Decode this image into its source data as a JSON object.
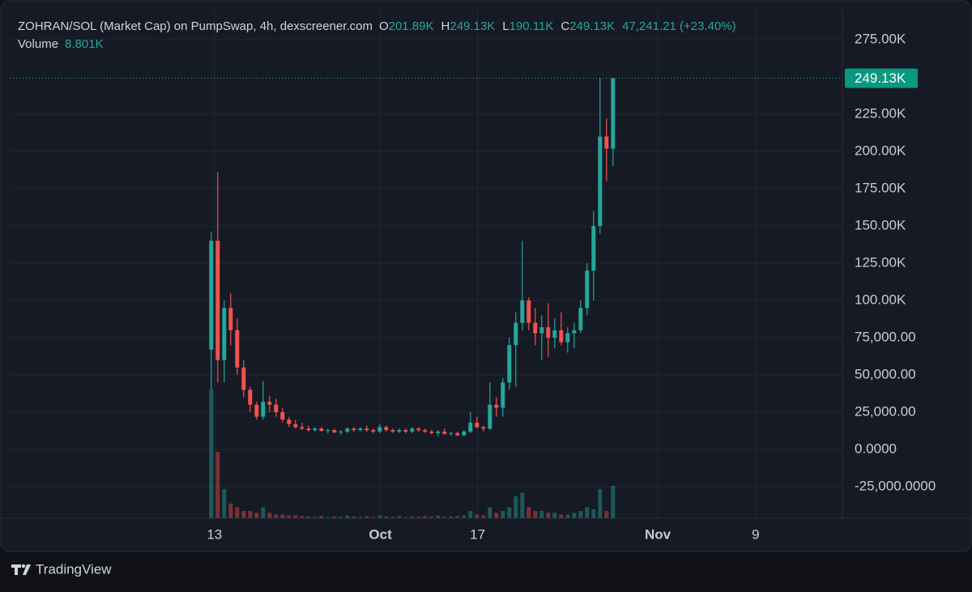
{
  "chart_data": {
    "type": "candlestick",
    "title": "ZOHRAN/SOL (Market Cap) on PumpSwap, 4h, dexscreener.com",
    "ohlc_legend": [
      {
        "key": "O",
        "value": "201.89K"
      },
      {
        "key": "H",
        "value": "249.13K"
      },
      {
        "key": "L",
        "value": "190.11K"
      },
      {
        "key": "C",
        "value": "249.13K"
      }
    ],
    "change_label": "47,241.21 (+23.40%)",
    "up_color": "#26a69a",
    "down_color": "#ef5350",
    "series": [
      {
        "name": "ZOHRAN/SOL",
        "open": [
          67000,
          140000,
          60000,
          95000,
          80000,
          55000,
          40000,
          30000,
          22000,
          32000,
          30000,
          25000,
          20000,
          17000,
          15000,
          14000,
          13000,
          14000,
          12500,
          13000,
          11500,
          12000,
          14000,
          13000,
          14000,
          13000,
          12000,
          15000,
          13000,
          12000,
          13000,
          12000,
          14000,
          13000,
          12000,
          11000,
          12000,
          10500,
          11000,
          9500,
          12000,
          18000,
          15000,
          14000,
          30000,
          28000,
          45000,
          70000,
          85000,
          100000,
          85000,
          78000,
          82000,
          75000,
          80000,
          72000,
          78000,
          80000,
          95000,
          120000,
          150000,
          210000,
          201890
        ],
        "high": [
          146000,
          186000,
          100000,
          105000,
          88000,
          60000,
          42000,
          32000,
          46000,
          36000,
          34000,
          28000,
          22000,
          20000,
          18000,
          16000,
          15000,
          15000,
          14000,
          14000,
          13000,
          15000,
          15000,
          15000,
          16000,
          14000,
          17000,
          16000,
          14000,
          14000,
          14000,
          15000,
          15000,
          14000,
          13000,
          13000,
          14000,
          12000,
          12000,
          13000,
          25000,
          22000,
          16000,
          45000,
          35000,
          48000,
          75000,
          92000,
          140000,
          102000,
          95000,
          90000,
          98000,
          88000,
          92000,
          82000,
          85000,
          100000,
          125000,
          160000,
          249000,
          222000,
          249130
        ],
        "low": [
          40000,
          45000,
          45000,
          70000,
          50000,
          35000,
          25000,
          20000,
          20000,
          25000,
          22000,
          18000,
          15000,
          14000,
          13000,
          12000,
          12000,
          12000,
          11000,
          11000,
          10000,
          11000,
          12000,
          12000,
          12000,
          11000,
          11000,
          12000,
          11000,
          11000,
          11000,
          11000,
          12000,
          11000,
          10000,
          9000,
          10000,
          9000,
          9000,
          9000,
          11000,
          14000,
          12000,
          13000,
          22000,
          22000,
          40000,
          42000,
          80000,
          80000,
          70000,
          60000,
          62000,
          68000,
          70000,
          65000,
          68000,
          78000,
          90000,
          100000,
          145000,
          180000,
          190110
        ],
        "close": [
          140000,
          60000,
          95000,
          80000,
          55000,
          40000,
          30000,
          22000,
          32000,
          30000,
          25000,
          20000,
          17000,
          15000,
          14000,
          13000,
          14000,
          12500,
          13000,
          11500,
          12000,
          14000,
          13000,
          14000,
          13000,
          12000,
          15000,
          13000,
          12000,
          13000,
          12000,
          14000,
          13000,
          12000,
          11000,
          12000,
          10500,
          11000,
          9500,
          12000,
          18000,
          15000,
          14000,
          30000,
          28000,
          45000,
          70000,
          85000,
          100000,
          85000,
          78000,
          82000,
          75000,
          80000,
          72000,
          78000,
          80000,
          95000,
          120000,
          150000,
          210000,
          201890,
          249130
        ]
      }
    ],
    "volume": {
      "name": "Volume",
      "value_label": "8.801K",
      "ylim": [
        0,
        137
      ],
      "values": [
        35,
        18,
        8,
        4,
        3,
        2,
        2,
        1.5,
        3,
        1.5,
        1,
        1,
        0.8,
        0.8,
        0.6,
        0.5,
        0.4,
        0.6,
        0.3,
        0.5,
        0.4,
        0.7,
        0.5,
        0.4,
        0.6,
        0.3,
        0.8,
        0.5,
        0.4,
        0.6,
        0.3,
        0.5,
        0.4,
        0.6,
        0.5,
        0.7,
        0.4,
        0.5,
        0.6,
        0.8,
        2,
        1,
        0.8,
        3,
        1.5,
        2,
        3,
        6,
        7,
        3,
        2,
        2,
        1.5,
        1.5,
        1,
        1,
        1.5,
        2,
        3,
        2.5,
        8,
        2,
        8.801
      ]
    },
    "last_price": {
      "value": 249130,
      "label": "249.13K"
    },
    "ylim": [
      -46196,
      291848
    ],
    "yticks": [
      {
        "value": 275000,
        "label": "275.00K"
      },
      {
        "value": 225000,
        "label": "225.00K"
      },
      {
        "value": 200000,
        "label": "200.00K"
      },
      {
        "value": 175000,
        "label": "175.00K"
      },
      {
        "value": 150000,
        "label": "150.00K"
      },
      {
        "value": 125000,
        "label": "125.00K"
      },
      {
        "value": 100000,
        "label": "100.00K"
      },
      {
        "value": 75000,
        "label": "75,000.00"
      },
      {
        "value": 50000,
        "label": "50,000.00"
      },
      {
        "value": 25000,
        "label": "25,000.00"
      },
      {
        "value": 0,
        "label": "0.0000"
      },
      {
        "value": -25000,
        "label": "-25,000.0000"
      }
    ],
    "xlim": [
      -31.1,
      97.4
    ],
    "xticks": [
      {
        "value": 0.5,
        "label": "13"
      },
      {
        "value": 26.1,
        "label": "Oct"
      },
      {
        "value": 41.1,
        "label": "17"
      },
      {
        "value": 68.9,
        "label": "Nov"
      },
      {
        "value": 84,
        "label": "9"
      }
    ],
    "grid": true,
    "watermark": "TradingView"
  }
}
